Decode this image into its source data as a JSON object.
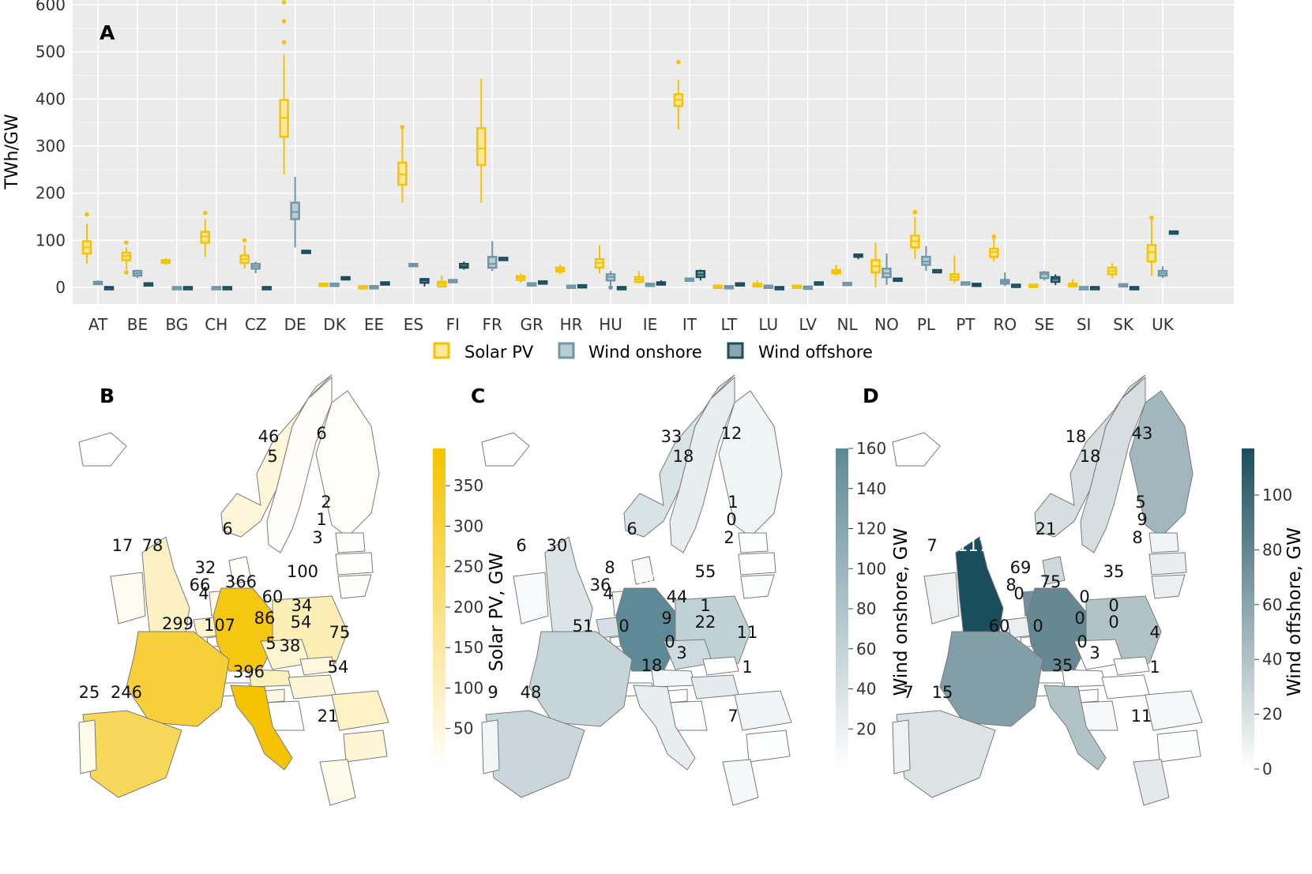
{
  "panel_labels": {
    "a": "A",
    "b": "B",
    "c": "C",
    "d": "D"
  },
  "colors": {
    "solar": "#f5c300",
    "onshore": "#6f97a6",
    "offshore": "#1b4e5c",
    "panel_bg": "#ebebeb",
    "map_border": "#7a7a7a"
  },
  "chart_data": [
    {
      "type": "box",
      "panel": "A",
      "ylabel": "TWh/GW",
      "ylim": [
        -35,
        610
      ],
      "yticks": [
        0,
        100,
        200,
        300,
        400,
        500,
        600
      ],
      "categories": [
        "AT",
        "BE",
        "BG",
        "CH",
        "CZ",
        "DE",
        "DK",
        "EE",
        "ES",
        "FI",
        "FR",
        "GR",
        "HR",
        "HU",
        "IE",
        "IT",
        "LT",
        "LU",
        "LV",
        "NL",
        "NO",
        "PL",
        "PT",
        "RO",
        "SE",
        "SI",
        "SK",
        "UK"
      ],
      "legend": [
        "Solar PV",
        "Wind onshore",
        "Wind offshore"
      ],
      "series": [
        {
          "name": "Solar PV",
          "color": "#f5c300",
          "stats": [
            [
              50,
              72,
              85,
              98,
              135
            ],
            [
              38,
              58,
              67,
              74,
              85
            ],
            [
              48,
              52,
              55,
              58,
              62
            ],
            [
              65,
              95,
              108,
              118,
              145
            ],
            [
              40,
              52,
              60,
              68,
              90
            ],
            [
              240,
              320,
              360,
              398,
              495
            ],
            [
              5,
              6,
              7,
              8,
              9
            ],
            [
              0,
              1,
              2,
              3,
              5
            ],
            [
              180,
              218,
              240,
              265,
              340
            ],
            [
              0,
              2,
              8,
              12,
              25
            ],
            [
              180,
              260,
              295,
              338,
              443
            ],
            [
              10,
              16,
              20,
              24,
              30
            ],
            [
              28,
              34,
              38,
              42,
              48
            ],
            [
              30,
              42,
              52,
              60,
              90
            ],
            [
              8,
              12,
              17,
              22,
              35
            ],
            [
              335,
              385,
              398,
              410,
              440
            ],
            [
              1,
              2,
              3,
              4,
              5
            ],
            [
              0,
              2,
              5,
              8,
              15
            ],
            [
              0,
              1,
              2,
              4,
              6
            ],
            [
              25,
              30,
              33,
              37,
              48
            ],
            [
              0,
              32,
              45,
              58,
              95
            ],
            [
              60,
              85,
              98,
              110,
              150
            ],
            [
              10,
              16,
              22,
              28,
              68
            ],
            [
              55,
              65,
              75,
              82,
              105
            ],
            [
              3,
              4,
              5,
              6,
              7
            ],
            [
              0,
              2,
              5,
              8,
              18
            ],
            [
              20,
              28,
              35,
              42,
              52
            ],
            [
              25,
              55,
              75,
              90,
              145
            ]
          ],
          "outliers": [
            [
              155
            ],
            [
              32,
              95
            ],
            [],
            [
              158
            ],
            [
              100
            ],
            [
              520,
              565,
              605
            ],
            [],
            [],
            [
              340
            ],
            [],
            [],
            [],
            [],
            [],
            [],
            [
              478
            ],
            [],
            [],
            [],
            [],
            [],
            [
              160
            ],
            [],
            [
              108
            ],
            [],
            [],
            [],
            [
              148
            ]
          ]
        },
        {
          "name": "Wind onshore",
          "color": "#6f97a6",
          "stats": [
            [
              5,
              7,
              10,
              12,
              15
            ],
            [
              20,
              25,
              30,
              35,
              38
            ],
            [
              0,
              0,
              0,
              1,
              1
            ],
            [
              0,
              0,
              0,
              1,
              1
            ],
            [
              30,
              40,
              45,
              50,
              55
            ],
            [
              85,
              145,
              160,
              180,
              235
            ],
            [
              4,
              5,
              7,
              8,
              10
            ],
            [
              0,
              1,
              2,
              3,
              4
            ],
            [
              45,
              47,
              48,
              50,
              51
            ],
            [
              12,
              14,
              15,
              16,
              17
            ],
            [
              35,
              42,
              50,
              65,
              98
            ],
            [
              6,
              7,
              8,
              9,
              10
            ],
            [
              1,
              2,
              3,
              4,
              5
            ],
            [
              5,
              15,
              22,
              28,
              35
            ],
            [
              3,
              5,
              7,
              8,
              10
            ],
            [
              15,
              17,
              18,
              19,
              20
            ],
            [
              0,
              1,
              2,
              3,
              4
            ],
            [
              1,
              2,
              3,
              4,
              6
            ],
            [
              0,
              1,
              1,
              2,
              3
            ],
            [
              7,
              8,
              9,
              10,
              11
            ],
            [
              5,
              22,
              30,
              40,
              72
            ],
            [
              35,
              48,
              55,
              65,
              88
            ],
            [
              8,
              9,
              10,
              11,
              12
            ],
            [
              3,
              8,
              12,
              16,
              32
            ],
            [
              15,
              20,
              28,
              32,
              35
            ],
            [
              0,
              0,
              1,
              1,
              2
            ],
            [
              0,
              2,
              5,
              7,
              9
            ],
            [
              20,
              25,
              30,
              35,
              45
            ]
          ],
          "outliers": [
            [],
            [],
            [],
            [],
            [],
            [],
            [],
            [],
            [],
            [],
            [],
            [],
            [],
            [
              0
            ],
            [],
            [],
            [],
            [],
            [],
            [],
            [],
            [],
            [],
            [],
            [],
            [],
            [],
            []
          ]
        },
        {
          "name": "Wind offshore",
          "color": "#1b4e5c",
          "stats": [
            [
              0,
              0,
              0,
              1,
              1
            ],
            [
              6,
              7,
              8,
              9,
              10
            ],
            [
              0,
              0,
              0,
              1,
              1
            ],
            [
              0,
              0,
              0,
              1,
              1
            ],
            [
              0,
              0,
              0,
              1,
              1
            ],
            [
              72,
              74,
              76,
              78,
              80
            ],
            [
              15,
              18,
              20,
              22,
              24
            ],
            [
              5,
              7,
              9,
              11,
              13
            ],
            [
              2,
              10,
              15,
              18,
              20
            ],
            [
              38,
              42,
              45,
              50,
              55
            ],
            [
              58,
              60,
              62,
              63,
              64
            ],
            [
              10,
              11,
              12,
              13,
              14
            ],
            [
              2,
              3,
              4,
              5,
              6
            ],
            [
              0,
              0,
              0,
              1,
              1
            ],
            [
              5,
              7,
              9,
              11,
              15
            ],
            [
              15,
              22,
              28,
              35,
              38
            ],
            [
              6,
              7,
              8,
              9,
              10
            ],
            [
              0,
              0,
              0,
              1,
              1
            ],
            [
              8,
              9,
              10,
              11,
              12
            ],
            [
              60,
              65,
              68,
              70,
              72
            ],
            [
              15,
              17,
              18,
              19,
              20
            ],
            [
              32,
              34,
              36,
              37,
              38
            ],
            [
              2,
              4,
              6,
              8,
              10
            ],
            [
              3,
              4,
              5,
              6,
              7
            ],
            [
              5,
              12,
              18,
              22,
              28
            ],
            [
              0,
              0,
              0,
              1,
              1
            ],
            [
              0,
              0,
              0,
              1,
              1
            ],
            [
              115,
              116,
              118,
              119,
              120
            ]
          ],
          "outliers": [
            [],
            [],
            [],
            [],
            [],
            [],
            [],
            [],
            [],
            [],
            [],
            [],
            [],
            [],
            [],
            [],
            [],
            [],
            [],
            [],
            [],
            [],
            [],
            [],
            [],
            [],
            [],
            []
          ]
        }
      ]
    },
    {
      "type": "choropleth",
      "panel": "B",
      "colorbar_label": "Solar PV, GW",
      "colorbar_ticks": [
        50,
        100,
        150,
        200,
        250,
        300,
        350
      ],
      "range": [
        0,
        396
      ],
      "values": {
        "NO": "46",
        "SE": "5",
        "FI": "6",
        "EE": "2",
        "LV": "1",
        "LT": "3",
        "DK": "6",
        "IE": "17",
        "UK": "78",
        "NL": "32",
        "BE": "66",
        "LU": "4",
        "DE": "366",
        "PL": "100",
        "CZ": "60",
        "SK": "34",
        "AT": "86",
        "HU": "54",
        "CH": "5",
        "SI": "38",
        "FR": "299",
        "IT": "396",
        "ES": "246",
        "PT": "25",
        "RO": "75",
        "BG": "54",
        "GR": "21",
        "CHX": "107"
      }
    },
    {
      "type": "choropleth",
      "panel": "C",
      "colorbar_label": "Wind onshore, GW",
      "colorbar_ticks": [
        20,
        40,
        60,
        80,
        100,
        120,
        140,
        160
      ],
      "range": [
        0,
        160
      ],
      "values": {
        "NO": "33",
        "SE": "18",
        "FI": "12",
        "EE": "1",
        "LV": "0",
        "LT": "2",
        "DK": "6",
        "IE": "6",
        "UK": "30",
        "NL": "8",
        "BE": "36",
        "LU": "4",
        "DE": "160",
        "PL": "55",
        "CZ": "44",
        "SK": "1",
        "AT": "9",
        "HU": "22",
        "CH": "0",
        "SI": "0",
        "HR": "3",
        "FR": "51",
        "IT": "18",
        "ES": "48",
        "PT": "9",
        "RO": "11",
        "BG": "1",
        "GR": "7"
      }
    },
    {
      "type": "choropleth",
      "panel": "D",
      "colorbar_label": "Wind offshore, GW",
      "colorbar_ticks": [
        0,
        20,
        40,
        60,
        80,
        100
      ],
      "range": [
        0,
        117
      ],
      "values": {
        "NO": "18",
        "SE": "18",
        "FI": "43",
        "EE": "5",
        "LV": "9",
        "LT": "8",
        "DK": "21",
        "IE": "7",
        "UK": "117",
        "NL": "69",
        "BE": "8",
        "LU": "0",
        "DE": "75",
        "PL": "35",
        "CZ": "0",
        "SK": "0",
        "AT": "0",
        "HU": "0",
        "CH": "0",
        "SI": "0",
        "HR": "3",
        "FR": "60",
        "IT": "35",
        "ES": "15",
        "PT": "7",
        "RO": "4",
        "BG": "1",
        "GR": "11"
      }
    }
  ]
}
